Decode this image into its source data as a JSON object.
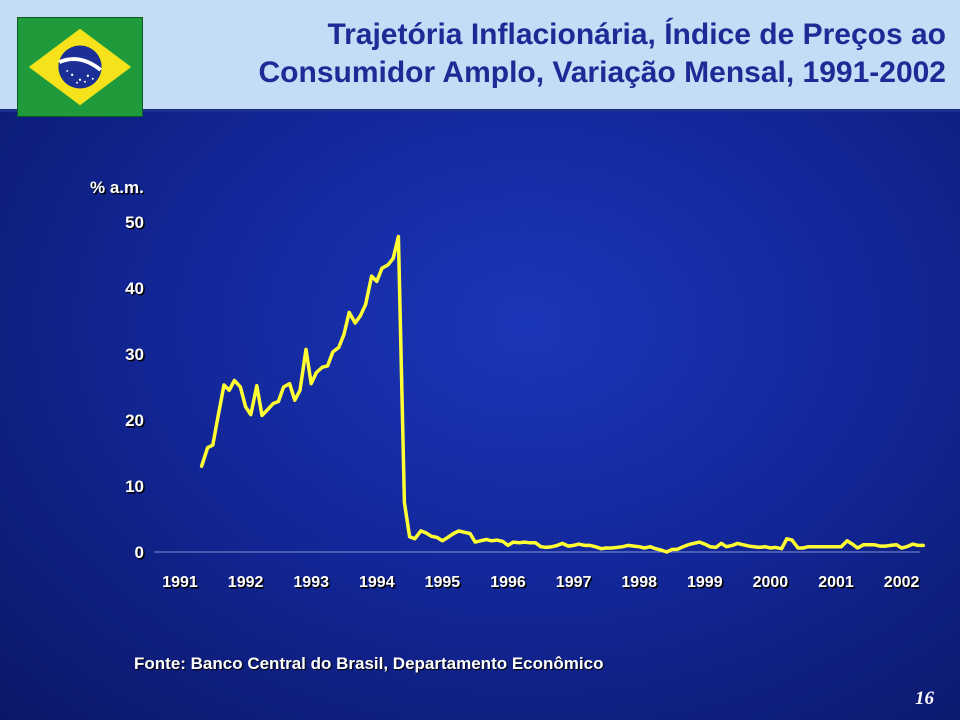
{
  "slide": {
    "title_line1": "Trajetória Inflacionária, Índice de Preços ao",
    "title_line2": "Consumidor Amplo, Variação Mensal, 1991-2002",
    "source": "Fonte: Banco Central do Brasil, Departamento Econômico",
    "page_number": "16",
    "flag_icon": "brazil-flag-icon"
  },
  "colors": {
    "background": "#13279a",
    "title_bar": "#c4dcf6",
    "title_text": "#1c2b95",
    "series_line": "#ffff33",
    "axis_text": "#ffffff"
  },
  "chart_data": {
    "type": "line",
    "title": "",
    "xlabel": "",
    "ylabel": "% a.m.",
    "ylim": [
      0,
      50
    ],
    "yticks": [
      "0",
      "10",
      "20",
      "30",
      "40",
      "50"
    ],
    "xticks": [
      "1991",
      "1992",
      "1993",
      "1994",
      "1995",
      "1996",
      "1997",
      "1998",
      "1999",
      "2000",
      "2001",
      "2002"
    ],
    "grid": false,
    "legend": "none",
    "series": [
      {
        "values": [
          [
            1991.33,
            13.0
          ],
          [
            1991.42,
            15.8
          ],
          [
            1991.5,
            16.2
          ],
          [
            1991.58,
            20.5
          ],
          [
            1991.67,
            25.3
          ],
          [
            1991.75,
            24.5
          ],
          [
            1991.83,
            26.0
          ],
          [
            1991.92,
            25.0
          ],
          [
            1992.0,
            22.0
          ],
          [
            1992.08,
            20.8
          ],
          [
            1992.17,
            25.2
          ],
          [
            1992.25,
            20.7
          ],
          [
            1992.33,
            21.5
          ],
          [
            1992.42,
            22.5
          ],
          [
            1992.5,
            22.8
          ],
          [
            1992.58,
            25.0
          ],
          [
            1992.67,
            25.5
          ],
          [
            1992.75,
            23.0
          ],
          [
            1992.83,
            24.5
          ],
          [
            1992.92,
            30.7
          ],
          [
            1993.0,
            25.5
          ],
          [
            1993.08,
            27.2
          ],
          [
            1993.17,
            28.0
          ],
          [
            1993.25,
            28.2
          ],
          [
            1993.33,
            30.3
          ],
          [
            1993.42,
            31.0
          ],
          [
            1993.5,
            33.0
          ],
          [
            1993.58,
            36.3
          ],
          [
            1993.67,
            34.7
          ],
          [
            1993.75,
            35.8
          ],
          [
            1993.83,
            37.5
          ],
          [
            1993.92,
            41.8
          ],
          [
            1994.0,
            41.0
          ],
          [
            1994.08,
            43.0
          ],
          [
            1994.17,
            43.5
          ],
          [
            1994.25,
            44.5
          ],
          [
            1994.33,
            47.8
          ],
          [
            1994.42,
            7.5
          ],
          [
            1994.5,
            2.3
          ],
          [
            1994.58,
            2.0
          ],
          [
            1994.67,
            3.2
          ],
          [
            1994.75,
            2.9
          ],
          [
            1994.83,
            2.4
          ],
          [
            1994.92,
            2.2
          ],
          [
            1995.0,
            1.7
          ],
          [
            1995.08,
            2.2
          ],
          [
            1995.17,
            2.8
          ],
          [
            1995.25,
            3.2
          ],
          [
            1995.33,
            3.0
          ],
          [
            1995.42,
            2.8
          ],
          [
            1995.5,
            1.5
          ],
          [
            1995.58,
            1.7
          ],
          [
            1995.67,
            1.9
          ],
          [
            1995.75,
            1.7
          ],
          [
            1995.83,
            1.8
          ],
          [
            1995.92,
            1.6
          ],
          [
            1996.0,
            1.0
          ],
          [
            1996.08,
            1.5
          ],
          [
            1996.17,
            1.4
          ],
          [
            1996.25,
            1.5
          ],
          [
            1996.33,
            1.4
          ],
          [
            1996.42,
            1.4
          ],
          [
            1996.5,
            0.8
          ],
          [
            1996.58,
            0.7
          ],
          [
            1996.67,
            0.8
          ],
          [
            1996.75,
            1.0
          ],
          [
            1996.83,
            1.3
          ],
          [
            1996.92,
            0.9
          ],
          [
            1997.0,
            1.0
          ],
          [
            1997.08,
            1.2
          ],
          [
            1997.17,
            1.0
          ],
          [
            1997.25,
            1.0
          ],
          [
            1997.33,
            0.8
          ],
          [
            1997.42,
            0.5
          ],
          [
            1997.5,
            0.6
          ],
          [
            1997.58,
            0.6
          ],
          [
            1997.67,
            0.7
          ],
          [
            1997.75,
            0.8
          ],
          [
            1997.83,
            1.0
          ],
          [
            1997.92,
            0.9
          ],
          [
            1998.0,
            0.8
          ],
          [
            1998.08,
            0.6
          ],
          [
            1998.17,
            0.8
          ],
          [
            1998.25,
            0.5
          ],
          [
            1998.33,
            0.3
          ],
          [
            1998.42,
            0.0
          ],
          [
            1998.5,
            0.4
          ],
          [
            1998.58,
            0.4
          ],
          [
            1998.67,
            0.8
          ],
          [
            1998.75,
            1.1
          ],
          [
            1998.83,
            1.3
          ],
          [
            1998.92,
            1.5
          ],
          [
            1999.0,
            1.2
          ],
          [
            1999.08,
            0.8
          ],
          [
            1999.17,
            0.7
          ],
          [
            1999.25,
            1.3
          ],
          [
            1999.33,
            0.8
          ],
          [
            1999.42,
            1.0
          ],
          [
            1999.5,
            1.3
          ],
          [
            1999.58,
            1.1
          ],
          [
            1999.67,
            0.9
          ],
          [
            1999.75,
            0.8
          ],
          [
            1999.83,
            0.7
          ],
          [
            1999.92,
            0.8
          ],
          [
            2000.0,
            0.6
          ],
          [
            2000.08,
            0.7
          ],
          [
            2000.17,
            0.5
          ],
          [
            2000.25,
            2.0
          ],
          [
            2000.33,
            1.8
          ],
          [
            2000.42,
            0.6
          ],
          [
            2000.5,
            0.6
          ],
          [
            2000.58,
            0.8
          ],
          [
            2000.67,
            0.8
          ],
          [
            2000.75,
            0.8
          ],
          [
            2000.83,
            0.8
          ],
          [
            2000.92,
            0.8
          ],
          [
            2001.0,
            0.8
          ],
          [
            2001.08,
            0.8
          ],
          [
            2001.17,
            1.7
          ],
          [
            2001.25,
            1.2
          ],
          [
            2001.33,
            0.6
          ],
          [
            2001.42,
            1.1
          ],
          [
            2001.5,
            1.1
          ],
          [
            2001.58,
            1.1
          ],
          [
            2001.67,
            0.9
          ],
          [
            2001.75,
            0.9
          ],
          [
            2001.83,
            1.0
          ],
          [
            2001.92,
            1.1
          ],
          [
            2002.0,
            0.6
          ],
          [
            2002.08,
            0.8
          ],
          [
            2002.17,
            1.2
          ],
          [
            2002.25,
            1.0
          ],
          [
            2002.33,
            1.0
          ]
        ]
      }
    ]
  }
}
